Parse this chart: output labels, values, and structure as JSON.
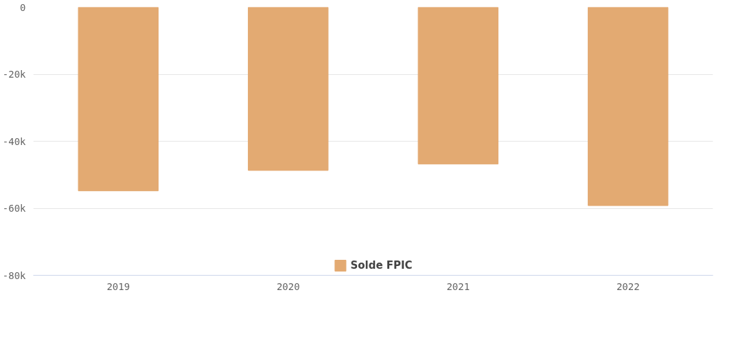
{
  "chart_data": {
    "type": "bar",
    "categories": [
      "2019",
      "2020",
      "2021",
      "2022"
    ],
    "series": [
      {
        "name": "Solde FPIC",
        "color": "#e3aa72",
        "values": [
          -54800,
          -48700,
          -46800,
          -59200
        ]
      }
    ],
    "ylim": [
      -80000,
      0
    ],
    "yticks": [
      {
        "value": -80000,
        "label": "-80k"
      },
      {
        "value": -60000,
        "label": "-60k"
      },
      {
        "value": -40000,
        "label": "-40k"
      },
      {
        "value": -20000,
        "label": "-20k"
      },
      0
    ],
    "grid": "y",
    "legend": "bottom"
  }
}
